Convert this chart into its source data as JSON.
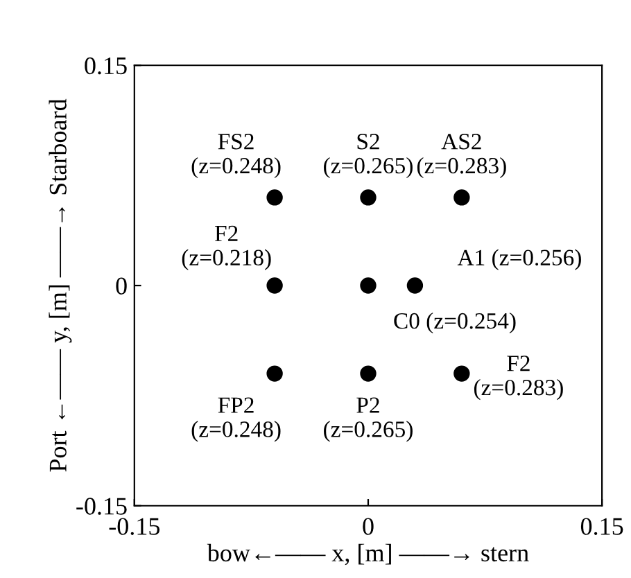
{
  "chart_data": {
    "type": "scatter",
    "xlabel": "bow←—— x, [m] ——→ stern",
    "ylabel": "Port ←—— y, [m] ——→ Starboard",
    "x": [
      -0.06,
      0,
      0.06,
      -0.06,
      0,
      0.03,
      -0.06,
      0,
      0.06
    ],
    "values": [
      0.06,
      0.06,
      0.06,
      0,
      0,
      0,
      -0.06,
      -0.06,
      -0.06
    ],
    "color": "#000000",
    "marker": "circle",
    "grid": false,
    "xlim": [
      -0.15,
      0.15
    ],
    "ylim": [
      -0.15,
      0.15
    ],
    "xticks": [
      {
        "value": -0.15,
        "label": "-0.15"
      },
      0,
      0.15
    ],
    "yticks": [
      {
        "value": -0.15,
        "label": "-0.15"
      },
      0,
      0.15
    ],
    "annotations": [
      {
        "text": "FS2\n(z=0.248)",
        "x": -0.06,
        "y": 0.06
      },
      {
        "text": "S2\n(z=0.265)",
        "x": 0,
        "y": 0.06
      },
      {
        "text": "AS2\n(z=0.283)",
        "x": 0.06,
        "y": 0.06
      },
      {
        "text": "F2\n(z=0.218)",
        "x": -0.06,
        "y": 0
      },
      {
        "text": "C0 (z=0.254)",
        "x": 0,
        "y": 0
      },
      {
        "text": "A1 (z=0.256)",
        "x": 0.03,
        "y": 0
      },
      {
        "text": "FP2\n(z=0.248)",
        "x": -0.06,
        "y": -0.06
      },
      {
        "text": "P2\n(z=0.265)",
        "x": 0,
        "y": -0.06
      },
      {
        "text": "F2\n(z=0.283)",
        "x": 0.06,
        "y": -0.06
      }
    ]
  }
}
